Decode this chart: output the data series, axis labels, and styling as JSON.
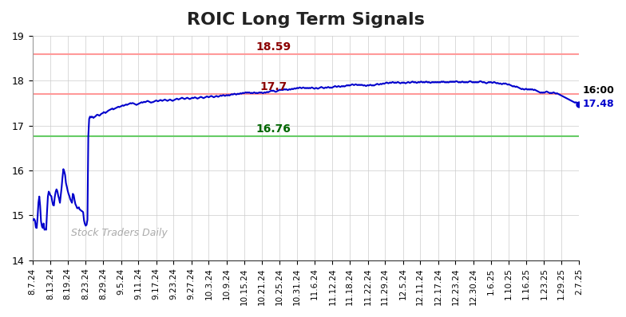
{
  "title": "ROIC Long Term Signals",
  "title_fontsize": 16,
  "background_color": "#ffffff",
  "line_color": "#0000cc",
  "line_width": 1.5,
  "ylim": [
    14,
    19
  ],
  "yticks": [
    14,
    15,
    16,
    17,
    18,
    19
  ],
  "hline_red1": 18.59,
  "hline_red2": 17.7,
  "hline_green": 16.76,
  "hline_red1_color": "#ff9999",
  "hline_red2_color": "#ff9999",
  "hline_green_color": "#66cc66",
  "label_red1": "18.59",
  "label_red2": "17.7",
  "label_green": "16.76",
  "label_red1_color": "#8b0000",
  "label_red2_color": "#8b0000",
  "label_green_color": "#006600",
  "end_label_time": "16:00",
  "end_label_value": "17.48",
  "end_label_time_color": "#000000",
  "end_label_value_color": "#0000cc",
  "watermark": "Stock Traders Daily",
  "watermark_color": "#aaaaaa",
  "grid_color": "#cccccc",
  "xtick_labels": [
    "8.7.24",
    "8.13.24",
    "8.19.24",
    "8.23.24",
    "8.29.24",
    "9.5.24",
    "9.11.24",
    "9.17.24",
    "9.23.24",
    "9.27.24",
    "10.3.24",
    "10.9.24",
    "10.15.24",
    "10.21.24",
    "10.25.24",
    "10.31.24",
    "11.6.24",
    "11.12.24",
    "11.18.24",
    "11.22.24",
    "11.29.24",
    "12.5.24",
    "12.11.24",
    "12.17.24",
    "12.23.24",
    "12.30.24",
    "1.6.25",
    "1.10.25",
    "1.16.25",
    "1.23.25",
    "1.29.25",
    "2.7.25"
  ],
  "y_values": [
    14.92,
    14.89,
    14.92,
    14.88,
    14.73,
    14.72,
    14.96,
    15.28,
    15.42,
    15.21,
    14.87,
    14.76,
    14.72,
    14.82,
    14.68,
    14.69,
    14.68,
    15.08,
    15.42,
    15.53,
    15.49,
    15.44,
    15.43,
    15.32,
    15.23,
    15.22,
    15.41,
    15.52,
    15.58,
    15.54,
    15.44,
    15.37,
    15.28,
    15.46,
    15.63,
    15.85,
    16.03,
    15.98,
    15.9,
    15.72,
    15.64,
    15.55,
    15.48,
    15.43,
    15.36,
    15.32,
    15.28,
    15.48,
    15.45,
    15.34,
    15.25,
    15.21,
    15.16,
    15.16,
    15.18,
    15.13,
    15.12,
    15.1,
    15.09,
    15.07,
    14.89,
    14.81,
    14.77,
    14.79,
    14.9,
    16.76,
    17.15,
    17.2,
    17.18,
    17.2,
    17.19,
    17.17,
    17.19,
    17.2,
    17.22,
    17.24,
    17.24,
    17.23,
    17.22,
    17.24,
    17.26,
    17.27,
    17.28,
    17.3,
    17.29,
    17.28,
    17.3,
    17.31,
    17.33,
    17.34,
    17.35,
    17.36,
    17.37,
    17.38,
    17.36,
    17.37,
    17.38,
    17.39,
    17.4,
    17.41,
    17.42,
    17.41,
    17.42,
    17.43,
    17.44,
    17.45,
    17.44,
    17.45,
    17.46,
    17.47,
    17.46,
    17.47,
    17.48,
    17.49,
    17.5,
    17.49,
    17.5,
    17.5,
    17.49,
    17.48,
    17.47,
    17.46,
    17.47,
    17.48,
    17.49,
    17.5,
    17.51,
    17.52,
    17.51,
    17.52,
    17.53,
    17.52,
    17.53,
    17.54,
    17.55,
    17.54,
    17.53,
    17.52,
    17.51,
    17.52,
    17.52,
    17.53,
    17.54,
    17.55,
    17.56,
    17.55,
    17.54,
    17.55,
    17.56,
    17.57,
    17.56,
    17.55,
    17.56,
    17.57,
    17.58,
    17.57,
    17.56,
    17.55,
    17.56,
    17.57,
    17.58,
    17.57,
    17.56,
    17.55,
    17.56,
    17.57,
    17.58,
    17.59,
    17.6,
    17.59,
    17.58,
    17.59,
    17.6,
    17.61,
    17.62,
    17.61,
    17.6,
    17.59,
    17.6,
    17.61,
    17.62,
    17.61,
    17.6,
    17.59,
    17.6,
    17.61,
    17.62,
    17.61,
    17.62,
    17.63,
    17.62,
    17.61,
    17.6,
    17.61,
    17.62,
    17.63,
    17.64,
    17.63,
    17.62,
    17.61,
    17.62,
    17.63,
    17.64,
    17.65,
    17.64,
    17.63,
    17.64,
    17.65,
    17.66,
    17.65,
    17.64,
    17.63,
    17.64,
    17.65,
    17.66,
    17.65,
    17.64,
    17.65,
    17.66,
    17.67,
    17.66,
    17.67,
    17.68,
    17.67,
    17.66,
    17.67,
    17.68,
    17.67,
    17.68,
    17.67,
    17.68,
    17.69,
    17.7,
    17.69,
    17.7,
    17.71,
    17.7,
    17.69,
    17.7,
    17.71,
    17.7,
    17.71,
    17.72,
    17.71,
    17.72,
    17.73,
    17.72,
    17.73,
    17.74,
    17.73,
    17.74,
    17.73,
    17.74,
    17.73,
    17.72,
    17.73,
    17.72,
    17.73,
    17.74,
    17.73,
    17.72,
    17.73,
    17.72,
    17.73,
    17.74,
    17.73,
    17.74,
    17.73,
    17.72,
    17.73,
    17.74,
    17.73,
    17.74,
    17.75,
    17.74,
    17.75,
    17.76,
    17.77,
    17.78,
    17.77,
    17.78,
    17.77,
    17.76,
    17.75,
    17.76,
    17.77,
    17.78,
    17.79,
    17.8,
    17.79,
    17.8,
    17.79,
    17.8,
    17.81,
    17.8,
    17.81,
    17.8,
    17.79,
    17.8,
    17.81,
    17.8,
    17.81,
    17.82,
    17.81,
    17.82,
    17.83,
    17.82,
    17.83,
    17.84,
    17.83,
    17.84,
    17.85,
    17.84,
    17.83,
    17.84,
    17.85,
    17.84,
    17.83,
    17.84,
    17.83,
    17.84,
    17.83,
    17.84,
    17.83,
    17.84,
    17.85,
    17.84,
    17.83,
    17.82,
    17.83,
    17.84,
    17.83,
    17.82,
    17.83,
    17.84,
    17.85,
    17.86,
    17.85,
    17.84,
    17.83,
    17.84,
    17.85,
    17.84,
    17.85,
    17.86,
    17.85,
    17.84,
    17.85,
    17.84,
    17.85,
    17.86,
    17.87,
    17.88,
    17.87,
    17.86,
    17.87,
    17.88,
    17.87,
    17.86,
    17.87,
    17.88,
    17.87,
    17.88,
    17.87,
    17.88,
    17.89,
    17.9,
    17.89,
    17.9,
    17.89,
    17.9,
    17.91,
    17.92,
    17.91,
    17.9,
    17.91,
    17.92,
    17.91,
    17.9,
    17.91,
    17.9,
    17.91,
    17.9,
    17.91,
    17.9,
    17.89,
    17.9,
    17.89,
    17.88,
    17.89,
    17.9,
    17.89,
    17.9,
    17.91,
    17.9,
    17.89,
    17.9,
    17.89,
    17.9,
    17.91,
    17.92,
    17.93,
    17.92,
    17.91,
    17.92,
    17.93,
    17.92,
    17.93,
    17.94,
    17.93,
    17.94,
    17.95,
    17.96,
    17.95,
    17.94,
    17.95,
    17.96,
    17.95,
    17.96,
    17.97,
    17.96,
    17.95,
    17.96,
    17.95,
    17.96,
    17.97,
    17.96,
    17.95,
    17.94,
    17.95,
    17.96,
    17.95,
    17.96,
    17.95,
    17.94,
    17.95,
    17.96,
    17.97,
    17.96,
    17.95,
    17.96,
    17.97,
    17.98,
    17.97,
    17.96,
    17.97,
    17.96,
    17.95,
    17.96,
    17.97,
    17.96,
    17.97,
    17.98,
    17.97,
    17.96,
    17.97,
    17.96,
    17.97,
    17.98,
    17.97,
    17.96,
    17.97,
    17.96,
    17.95,
    17.96,
    17.97,
    17.96,
    17.97,
    17.96,
    17.97,
    17.96,
    17.97,
    17.96,
    17.97,
    17.96,
    17.97,
    17.98,
    17.97,
    17.98,
    17.97,
    17.96,
    17.97,
    17.96,
    17.97,
    17.96,
    17.97,
    17.98,
    17.97,
    17.98,
    17.97,
    17.98,
    17.97,
    17.98,
    17.99,
    17.98,
    17.97,
    17.96,
    17.97,
    17.96,
    17.97,
    17.98,
    17.97,
    17.96,
    17.97,
    17.96,
    17.97,
    17.96,
    17.97,
    17.98,
    17.99,
    17.98,
    17.97,
    17.96,
    17.97,
    17.96,
    17.97,
    17.96,
    17.97,
    17.96,
    17.97,
    17.98,
    17.99,
    17.98,
    17.97,
    17.96,
    17.97,
    17.96,
    17.95,
    17.94,
    17.95,
    17.96,
    17.97,
    17.96,
    17.97,
    17.96,
    17.95,
    17.96,
    17.97,
    17.96,
    17.95,
    17.94,
    17.95,
    17.94,
    17.93,
    17.94,
    17.93,
    17.92,
    17.93,
    17.94,
    17.93,
    17.94,
    17.93,
    17.92,
    17.91,
    17.92,
    17.91,
    17.9,
    17.89,
    17.88,
    17.87,
    17.88,
    17.87,
    17.86,
    17.87,
    17.86,
    17.85,
    17.84,
    17.83,
    17.82,
    17.81,
    17.82,
    17.81,
    17.8,
    17.81,
    17.82,
    17.81,
    17.8,
    17.81,
    17.8,
    17.81,
    17.8,
    17.81,
    17.8,
    17.79,
    17.8,
    17.79,
    17.78,
    17.77,
    17.76,
    17.75,
    17.74,
    17.73,
    17.74,
    17.73,
    17.74,
    17.73,
    17.74,
    17.75,
    17.76,
    17.75,
    17.74,
    17.73,
    17.72,
    17.73,
    17.72,
    17.73,
    17.74,
    17.73,
    17.72,
    17.71,
    17.72,
    17.71,
    17.7,
    17.69,
    17.68,
    17.67,
    17.66,
    17.65,
    17.64,
    17.63,
    17.62,
    17.61,
    17.6,
    17.59,
    17.58,
    17.57,
    17.56,
    17.55,
    17.54,
    17.53,
    17.52,
    17.51,
    17.52,
    17.51,
    17.5,
    17.49,
    17.48
  ]
}
